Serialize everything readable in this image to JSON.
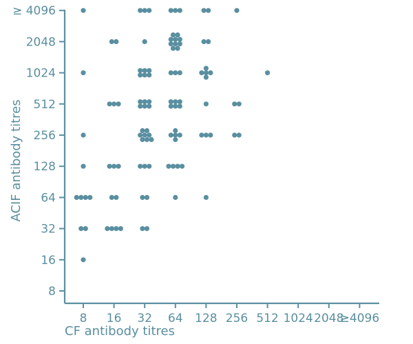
{
  "chart_data": {
    "type": "scatter",
    "title": "",
    "xlabel": "CF antibody titres",
    "ylabel": "ACIF antibody titres",
    "x_ticks": [
      "8",
      "16",
      "32",
      "64",
      "128",
      "256",
      "512",
      "1024",
      "2048",
      "≥4096"
    ],
    "y_ticks": [
      "8",
      "16",
      "32",
      "64",
      "128",
      "256",
      "512",
      "1024",
      "2048",
      "≥ 4096"
    ],
    "x_scale": "log2",
    "y_scale": "log2",
    "grid": false,
    "legend": "none",
    "color": "#5a8fa0",
    "cells": [
      {
        "x": 8,
        "y": 16,
        "count": 1
      },
      {
        "x": 8,
        "y": 32,
        "count": 2
      },
      {
        "x": 8,
        "y": 64,
        "count": 4
      },
      {
        "x": 8,
        "y": 128,
        "count": 1
      },
      {
        "x": 8,
        "y": 256,
        "count": 1
      },
      {
        "x": 8,
        "y": 1024,
        "count": 1
      },
      {
        "x": 8,
        "y": 4096,
        "count": 1
      },
      {
        "x": 16,
        "y": 32,
        "count": 4
      },
      {
        "x": 16,
        "y": 64,
        "count": 2
      },
      {
        "x": 16,
        "y": 128,
        "count": 3
      },
      {
        "x": 16,
        "y": 512,
        "count": 3
      },
      {
        "x": 16,
        "y": 2048,
        "count": 2
      },
      {
        "x": 32,
        "y": 32,
        "count": 2
      },
      {
        "x": 32,
        "y": 64,
        "count": 2
      },
      {
        "x": 32,
        "y": 128,
        "count": 3
      },
      {
        "x": 32,
        "y": 256,
        "count": 8
      },
      {
        "x": 32,
        "y": 512,
        "count": 6
      },
      {
        "x": 32,
        "y": 1024,
        "count": 6
      },
      {
        "x": 32,
        "y": 2048,
        "count": 1
      },
      {
        "x": 32,
        "y": 4096,
        "count": 3
      },
      {
        "x": 64,
        "y": 64,
        "count": 1
      },
      {
        "x": 64,
        "y": 128,
        "count": 4
      },
      {
        "x": 64,
        "y": 256,
        "count": 5
      },
      {
        "x": 64,
        "y": 512,
        "count": 6
      },
      {
        "x": 64,
        "y": 1024,
        "count": 3
      },
      {
        "x": 64,
        "y": 2048,
        "count": 10
      },
      {
        "x": 64,
        "y": 4096,
        "count": 3
      },
      {
        "x": 128,
        "y": 64,
        "count": 1
      },
      {
        "x": 128,
        "y": 256,
        "count": 3
      },
      {
        "x": 128,
        "y": 512,
        "count": 1
      },
      {
        "x": 128,
        "y": 1024,
        "count": 5
      },
      {
        "x": 128,
        "y": 2048,
        "count": 2
      },
      {
        "x": 128,
        "y": 4096,
        "count": 2
      },
      {
        "x": 256,
        "y": 256,
        "count": 2
      },
      {
        "x": 256,
        "y": 512,
        "count": 2
      },
      {
        "x": 256,
        "y": 4096,
        "count": 1
      },
      {
        "x": 512,
        "y": 1024,
        "count": 1
      }
    ]
  }
}
